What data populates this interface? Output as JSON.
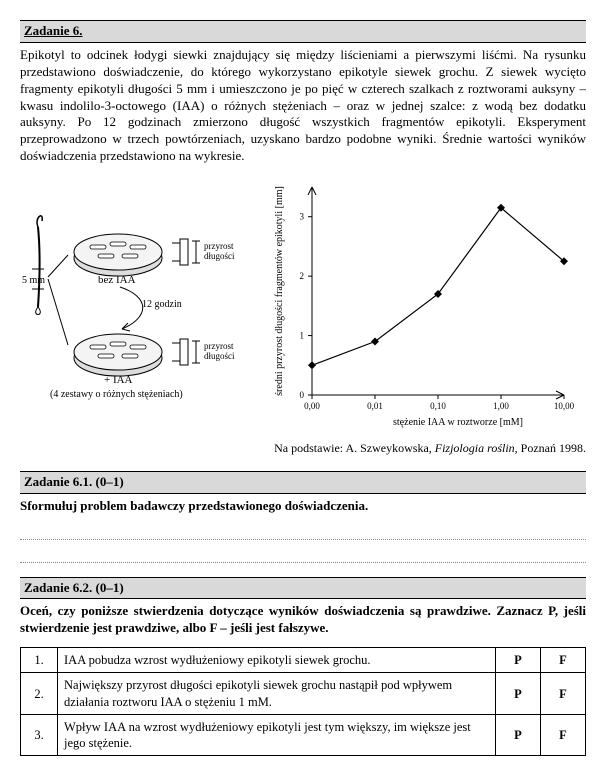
{
  "task6": {
    "header": "Zadanie 6.",
    "body": "Epikotyl to odcinek łodygi siewki znajdujący się między liścieniami a pierwszymi liśćmi. Na rysunku przedstawiono doświadczenie, do którego wykorzystano epikotyle siewek grochu. Z siewek wycięto fragmenty epikotyli długości 5 mm i umieszczono je po pięć w czterech szalkach z roztworami auksyny – kwasu indolilo-3-octowego (IAA) o różnych stężeniach – oraz w jednej szalce: z wodą bez dodatku auksyny. Po 12 godzinach zmierzono długość wszystkich fragmentów epikotyli. Eksperyment przeprowadzono w trzech powtórzeniach, uzyskano bardzo podobne wyniki. Średnie wartości wyników doświadczenia przedstawiono na wykresie."
  },
  "diagram": {
    "fiveMM": "5 mm",
    "bezIAA": "bez IAA",
    "h12": "12 godzin",
    "plusIAA": "+ IAA",
    "zest": "(4 zestawy o różnych stężeniach)",
    "przyrost": "przyrost\ndługości",
    "colors": {
      "dishFillTop": "#f4f4f4",
      "dishFillSide": "#dddddd",
      "stroke": "#000000",
      "fragFill": "#ffffff"
    }
  },
  "chart": {
    "type": "line",
    "xlabel": "stężenie IAA w roztworze [mM]",
    "ylabel": "średni przyrost długości fragmentów epikotyli [mm]",
    "xticks": [
      "0,00",
      "0,01",
      "0,10",
      "1,00",
      "10,00"
    ],
    "yticks": [
      "0",
      "1",
      "2",
      "3"
    ],
    "ylim": [
      0,
      3.5
    ],
    "points": [
      {
        "xi": 0,
        "y": 0.5
      },
      {
        "xi": 1,
        "y": 0.9
      },
      {
        "xi": 2,
        "y": 1.7
      },
      {
        "xi": 3,
        "y": 3.15
      },
      {
        "xi": 4,
        "y": 2.25
      }
    ],
    "line_color": "#000000",
    "line_width": 1.2,
    "marker_size": 4,
    "label_fontsize": 10,
    "tick_fontsize": 9
  },
  "caption": "Na podstawie: A. Szweykowska, Fizjologia roślin, Poznań 1998.",
  "sub61": {
    "header": "Zadanie 6.1. (0–1)",
    "prompt": "Sformułuj problem badawczy przedstawionego doświadczenia."
  },
  "sub62": {
    "header": "Zadanie 6.2. (0–1)",
    "prompt": "Oceń, czy poniższe stwierdzenia dotyczące wyników doświadczenia są prawdziwe. Zaznacz P, jeśli stwierdzenie jest prawdziwe, albo F – jeśli jest fałszywe.",
    "P": "P",
    "F": "F",
    "rows": [
      {
        "n": "1.",
        "t": "IAA pobudza wzrost wydłużeniowy epikotyli siewek grochu."
      },
      {
        "n": "2.",
        "t": "Największy przyrost długości epikotyli siewek grochu nastąpił pod wpływem działania roztworu IAA o stężeniu 1 mM."
      },
      {
        "n": "3.",
        "t": "Wpływ IAA na wzrost wydłużeniowy epikotyli jest tym większy, im większe jest jego stężenie."
      }
    ]
  }
}
